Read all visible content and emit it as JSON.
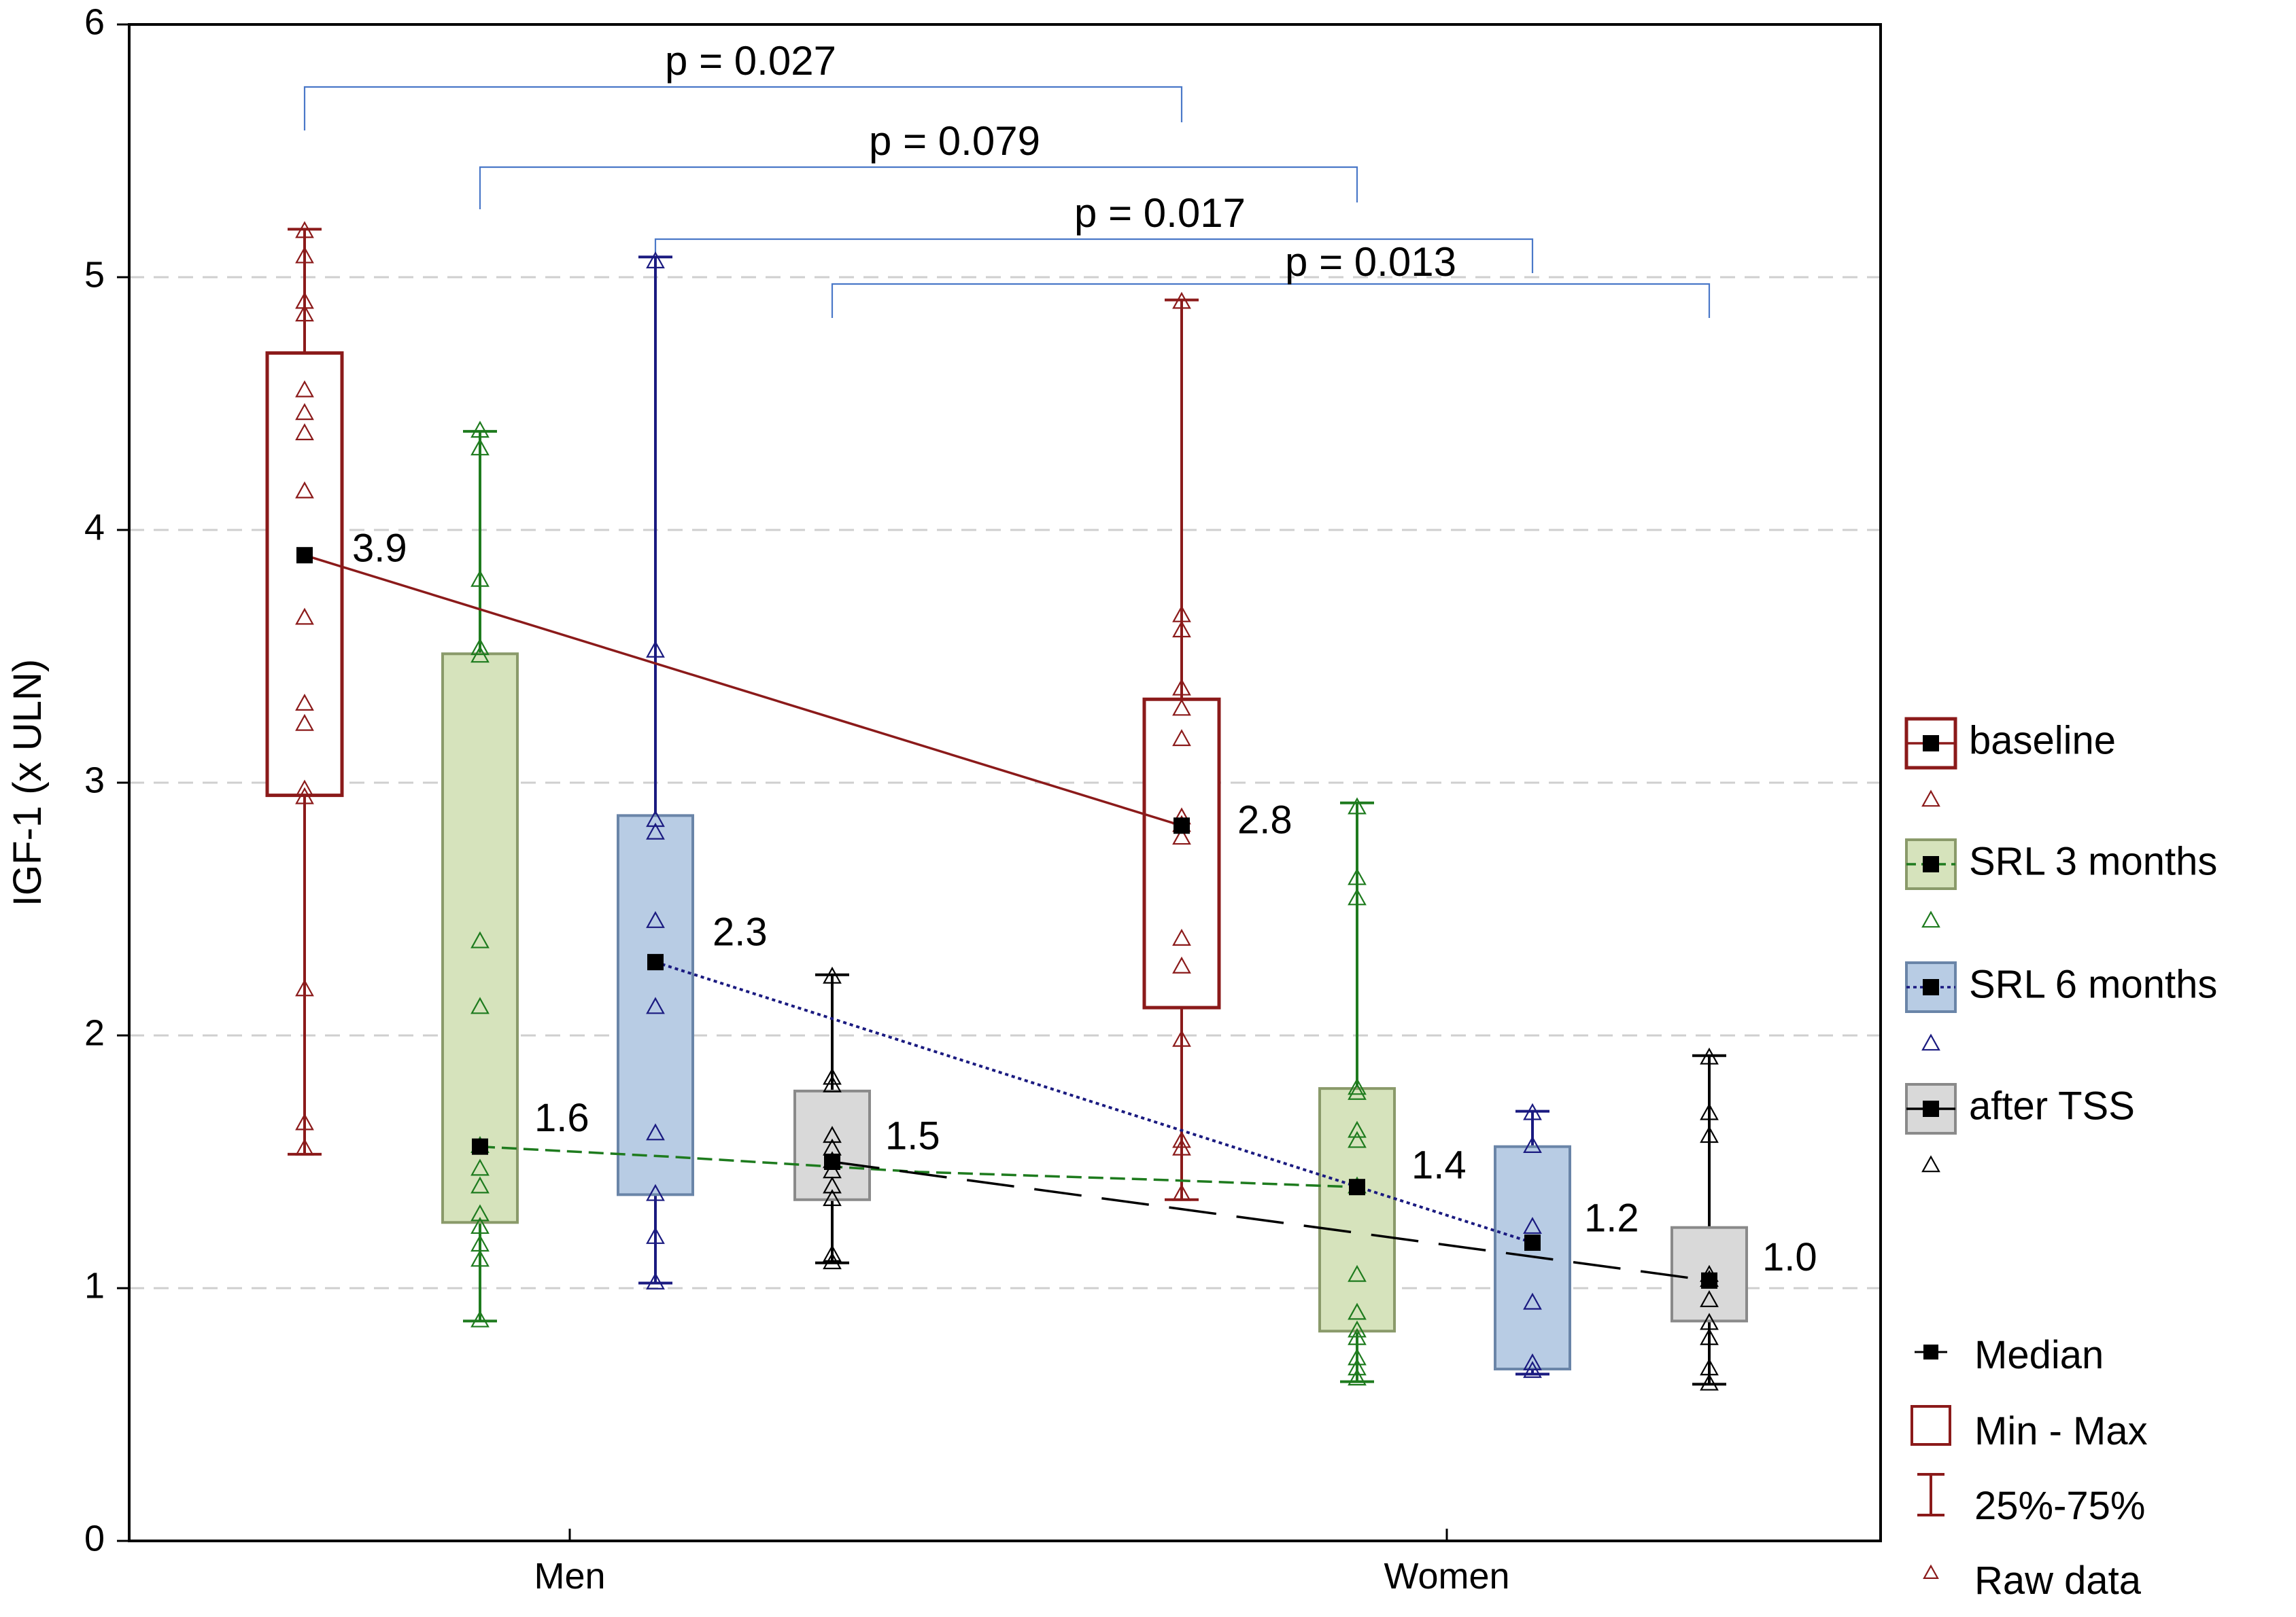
{
  "chart_data": {
    "type": "box",
    "title": "",
    "xlabel": "",
    "ylabel": "IGF-1 (x ULN)",
    "ylim": [
      0,
      6
    ],
    "yticks": [
      "0",
      "1",
      "2",
      "3",
      "4",
      "5",
      "6"
    ],
    "grid": "horizontal dashed",
    "categories": [
      "Men",
      "Women"
    ],
    "series": [
      {
        "name": "baseline",
        "color": "#8b1a1a",
        "fill": "#ffffff",
        "line_style": "solid",
        "groups": [
          {
            "category": "Men",
            "median": 3.9,
            "label": "3.9",
            "q1": 2.95,
            "q3": 4.7,
            "min": 1.53,
            "max": 5.19,
            "raw": [
              1.55,
              1.65,
              2.18,
              2.94,
              2.97,
              3.23,
              3.31,
              3.65,
              4.15,
              4.38,
              4.46,
              4.55,
              4.85,
              4.9,
              5.08,
              5.18
            ]
          },
          {
            "category": "Women",
            "median": 2.83,
            "label": "2.8",
            "q1": 2.11,
            "q3": 3.33,
            "min": 1.35,
            "max": 4.91,
            "raw": [
              1.37,
              1.55,
              1.58,
              1.98,
              2.27,
              2.38,
              2.78,
              2.83,
              2.86,
              3.17,
              3.29,
              3.37,
              3.6,
              3.66,
              4.9
            ]
          }
        ]
      },
      {
        "name": "SRL 3 months",
        "color": "#1e7b1e",
        "fill": "#d6e3bc",
        "line_style": "dashed",
        "groups": [
          {
            "category": "Men",
            "median": 1.56,
            "label": "1.6",
            "q1": 1.26,
            "q3": 3.51,
            "min": 0.87,
            "max": 4.39,
            "raw": [
              0.87,
              1.11,
              1.17,
              1.24,
              1.29,
              1.4,
              1.47,
              1.56,
              2.11,
              2.37,
              3.5,
              3.53,
              3.8,
              4.32,
              4.39
            ]
          },
          {
            "category": "Women",
            "median": 1.4,
            "label": "1.4",
            "q1": 0.83,
            "q3": 1.79,
            "min": 0.63,
            "max": 2.92,
            "raw": [
              0.64,
              0.68,
              0.72,
              0.8,
              0.83,
              0.9,
              1.05,
              1.4,
              1.58,
              1.62,
              1.77,
              1.79,
              2.54,
              2.62,
              2.9
            ]
          }
        ]
      },
      {
        "name": "SRL 6 months",
        "color": "#1a1a80",
        "fill": "#b8cce4",
        "line_style": "dotted",
        "groups": [
          {
            "category": "Men",
            "median": 2.29,
            "label": "2.3",
            "q1": 1.37,
            "q3": 2.87,
            "min": 1.02,
            "max": 5.08,
            "raw": [
              1.02,
              1.2,
              1.37,
              1.61,
              2.11,
              2.45,
              2.8,
              2.85,
              3.52,
              5.06
            ]
          },
          {
            "category": "Women",
            "median": 1.18,
            "label": "1.2",
            "q1": 0.68,
            "q3": 1.56,
            "min": 0.66,
            "max": 1.7,
            "raw": [
              0.67,
              0.7,
              0.94,
              1.24,
              1.56,
              1.69
            ]
          }
        ]
      },
      {
        "name": "after TSS",
        "color": "#000000",
        "fill": "#d9d9d9",
        "line_style": "long-dash",
        "groups": [
          {
            "category": "Men",
            "median": 1.5,
            "label": "1.5",
            "q1": 1.35,
            "q3": 1.78,
            "min": 1.1,
            "max": 2.24,
            "raw": [
              1.1,
              1.13,
              1.35,
              1.4,
              1.46,
              1.5,
              1.55,
              1.6,
              1.8,
              1.83,
              2.23
            ]
          },
          {
            "category": "Women",
            "median": 1.03,
            "label": "1.0",
            "q1": 0.87,
            "q3": 1.24,
            "min": 0.62,
            "max": 1.92,
            "raw": [
              0.62,
              0.68,
              0.8,
              0.86,
              0.95,
              1.03,
              1.05,
              1.6,
              1.69,
              1.91
            ]
          }
        ]
      }
    ],
    "comparisons": [
      {
        "from_series": "baseline",
        "to_series": "baseline",
        "label": "p = 0.027"
      },
      {
        "from_series": "SRL 3 months",
        "to_series": "SRL 3 months",
        "label": "p = 0.079"
      },
      {
        "from_series": "SRL 6 months",
        "to_series": "SRL 6 months",
        "label": "p = 0.017"
      },
      {
        "from_series": "after TSS",
        "to_series": "after TSS",
        "label": "p = 0.013"
      }
    ],
    "legend": {
      "position": "right",
      "series_items": [
        "baseline",
        "SRL 3 months",
        "SRL 6 months",
        "after TSS"
      ],
      "key_items": [
        "Median",
        "Min - Max",
        "25%-75%",
        "Raw data"
      ]
    }
  }
}
